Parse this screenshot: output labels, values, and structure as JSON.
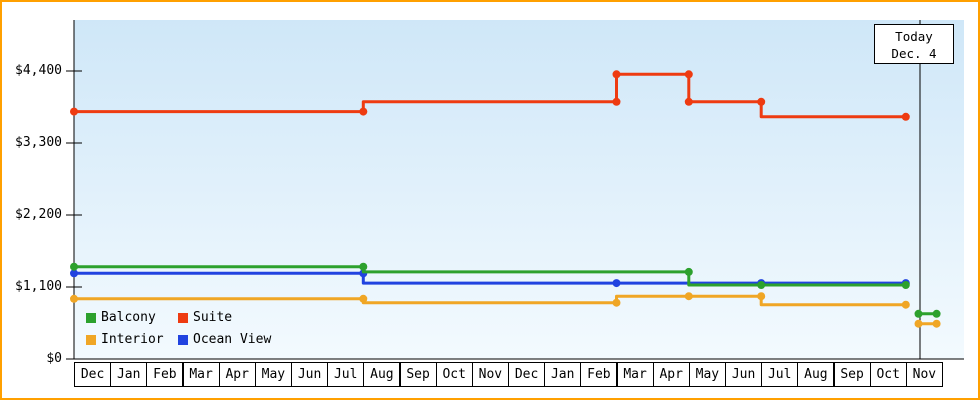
{
  "colors": {
    "frame_border": "#ffa000",
    "axis": "#000000",
    "plot_bg_top": "#cfe7f8",
    "plot_bg_bottom": "#f3fafe",
    "balcony": "#2da12d",
    "suite": "#ee3b11",
    "interior": "#f0a625",
    "ocean_view": "#2143e0"
  },
  "today_box": {
    "line1": "Today",
    "line2": "Dec. 4"
  },
  "y_axis": {
    "labels": [
      "$0",
      "$1,100",
      "$2,200",
      "$3,300",
      "$4,400"
    ],
    "values": [
      0,
      1100,
      2200,
      3300,
      4400
    ],
    "max": 4400
  },
  "x_axis": {
    "months": [
      "Dec",
      "Jan",
      "Feb",
      "Mar",
      "Apr",
      "May",
      "Jun",
      "Jul",
      "Aug",
      "Sep",
      "Oct",
      "Nov",
      "Dec",
      "Jan",
      "Feb",
      "Mar",
      "Apr",
      "May",
      "Jun",
      "Jul",
      "Aug",
      "Sep",
      "Oct",
      "Nov"
    ]
  },
  "legend": [
    {
      "label": "Balcony",
      "color_key": "balcony"
    },
    {
      "label": "Suite",
      "color_key": "suite"
    },
    {
      "label": "Interior",
      "color_key": "interior"
    },
    {
      "label": "Ocean View",
      "color_key": "ocean_view"
    }
  ],
  "chart_data": {
    "type": "line",
    "style": "stepped-price-history",
    "currency": "USD",
    "xlabel": "",
    "ylabel": "",
    "ylim": [
      0,
      4400
    ],
    "x_unit": "month index, 0 = first Dec of the 24-month axis",
    "point_format": "[month_index, price_usd, has_dot]",
    "grid": false,
    "legend_position": "bottom-left",
    "today": {
      "x": 23.4,
      "label": "Today",
      "date": "Dec. 4"
    },
    "series": [
      {
        "name": "Suite",
        "color_key": "suite",
        "segments": [
          [
            [
              0,
              3780,
              1
            ],
            [
              8,
              3780,
              1
            ],
            [
              8,
              3930,
              0
            ],
            [
              15,
              3930,
              1
            ],
            [
              15,
              4350,
              1
            ],
            [
              17,
              4350,
              1
            ],
            [
              17,
              3930,
              1
            ],
            [
              19,
              3930,
              1
            ],
            [
              19,
              3700,
              0
            ],
            [
              23,
              3700,
              1
            ]
          ]
        ]
      },
      {
        "name": "Ocean View",
        "color_key": "ocean_view",
        "segments": [
          [
            [
              0,
              1310,
              1
            ],
            [
              8,
              1310,
              1
            ],
            [
              8,
              1160,
              0
            ],
            [
              15,
              1160,
              1
            ],
            [
              19,
              1160,
              1
            ],
            [
              23,
              1160,
              1
            ]
          ]
        ]
      },
      {
        "name": "Balcony",
        "color_key": "balcony",
        "segments": [
          [
            [
              0,
              1410,
              1
            ],
            [
              8,
              1410,
              1
            ],
            [
              8,
              1330,
              0
            ],
            [
              17,
              1330,
              1
            ],
            [
              17,
              1130,
              0
            ],
            [
              19,
              1130,
              1
            ],
            [
              23,
              1130,
              1
            ]
          ],
          [
            [
              23.35,
              690,
              1
            ],
            [
              23.85,
              690,
              1
            ]
          ]
        ]
      },
      {
        "name": "Interior",
        "color_key": "interior",
        "segments": [
          [
            [
              0,
              920,
              1
            ],
            [
              8,
              920,
              1
            ],
            [
              8,
              860,
              0
            ],
            [
              15,
              860,
              1
            ],
            [
              15,
              960,
              0
            ],
            [
              17,
              960,
              1
            ],
            [
              19,
              960,
              1
            ],
            [
              19,
              830,
              0
            ],
            [
              23,
              830,
              1
            ]
          ],
          [
            [
              23.35,
              540,
              1
            ],
            [
              23.85,
              540,
              1
            ]
          ]
        ]
      }
    ]
  }
}
